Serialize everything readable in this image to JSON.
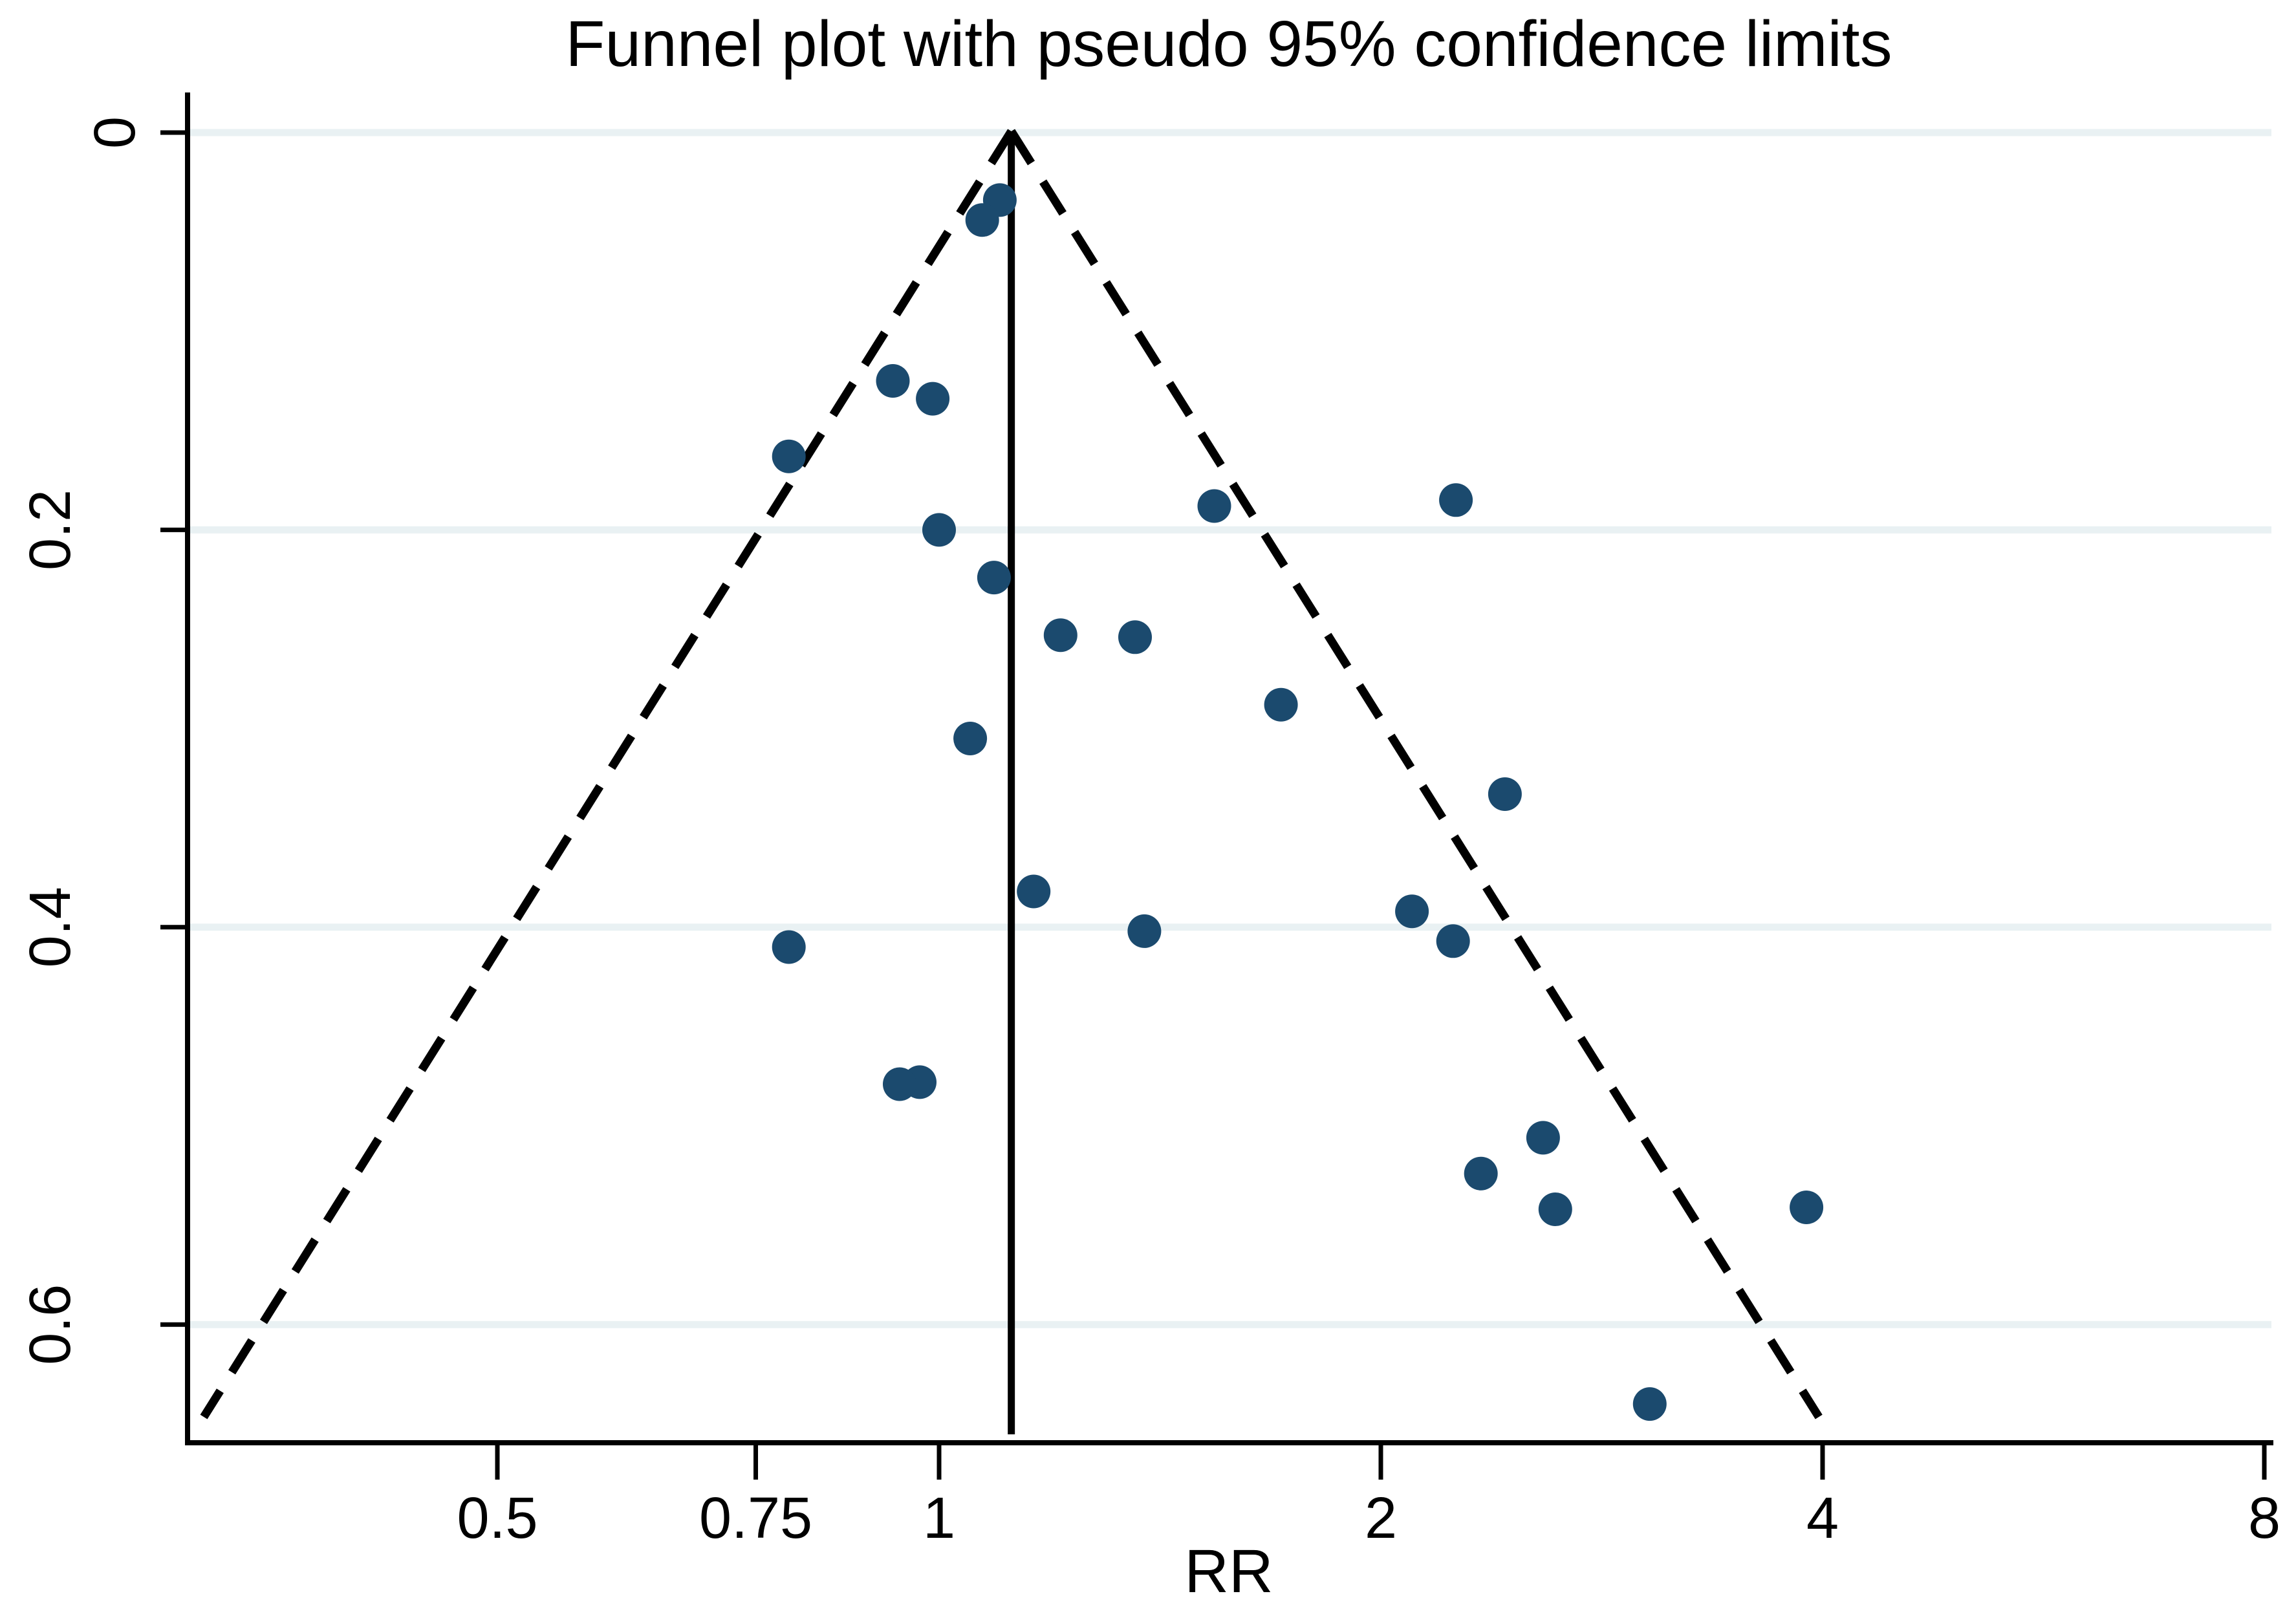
{
  "title": "Funnel plot with pseudo 95% confidence limits",
  "chart_data": {
    "type": "scatter",
    "title": "Funnel plot with pseudo 95% confidence limits",
    "xlabel": "RR",
    "ylabel": "",
    "x_scale": "log2",
    "y_inverted": true,
    "xlim": [
      0.31,
      8.14
    ],
    "ylim": [
      0,
      0.66
    ],
    "grid": "horizontal-only",
    "legend": "none",
    "x_ticks": [
      "0.5",
      "0.75",
      "1",
      "2",
      "4",
      "8"
    ],
    "x_tick_values": [
      0.5,
      0.75,
      1,
      2,
      4,
      8
    ],
    "y_ticks": [
      "0",
      "0.2",
      "0.4",
      "0.6"
    ],
    "y_tick_values": [
      0,
      0.2,
      0.4,
      0.6
    ],
    "funnel": {
      "pooled_rr": 1.12,
      "z": 1.96,
      "se_max": 0.6465,
      "ci_level": "95%"
    },
    "points": [
      {
        "rr": 1.1,
        "se": 0.034
      },
      {
        "rr": 1.07,
        "se": 0.044
      },
      {
        "rr": 0.93,
        "se": 0.125
      },
      {
        "rr": 0.99,
        "se": 0.134
      },
      {
        "rr": 0.79,
        "se": 0.163
      },
      {
        "rr": 1.0,
        "se": 0.2
      },
      {
        "rr": 2.25,
        "se": 0.185
      },
      {
        "rr": 1.54,
        "se": 0.188
      },
      {
        "rr": 1.09,
        "se": 0.224
      },
      {
        "rr": 1.21,
        "se": 0.253
      },
      {
        "rr": 1.36,
        "se": 0.254
      },
      {
        "rr": 1.71,
        "se": 0.288
      },
      {
        "rr": 1.05,
        "se": 0.305
      },
      {
        "rr": 2.43,
        "se": 0.333
      },
      {
        "rr": 1.16,
        "se": 0.382
      },
      {
        "rr": 2.1,
        "se": 0.392
      },
      {
        "rr": 1.38,
        "se": 0.402
      },
      {
        "rr": 2.24,
        "se": 0.407
      },
      {
        "rr": 0.79,
        "se": 0.41
      },
      {
        "rr": 0.97,
        "se": 0.478
      },
      {
        "rr": 0.94,
        "se": 0.479
      },
      {
        "rr": 2.58,
        "se": 0.506
      },
      {
        "rr": 2.34,
        "se": 0.524
      },
      {
        "rr": 2.63,
        "se": 0.542
      },
      {
        "rr": 3.9,
        "se": 0.541
      },
      {
        "rr": 3.05,
        "se": 0.64
      }
    ],
    "colors": {
      "marker": "#1b4a6e",
      "gridline": "#e9f1f3",
      "axis": "#000000",
      "limit_lines": "#000000",
      "estimate_line": "#000000",
      "background": "#ffffff"
    }
  }
}
